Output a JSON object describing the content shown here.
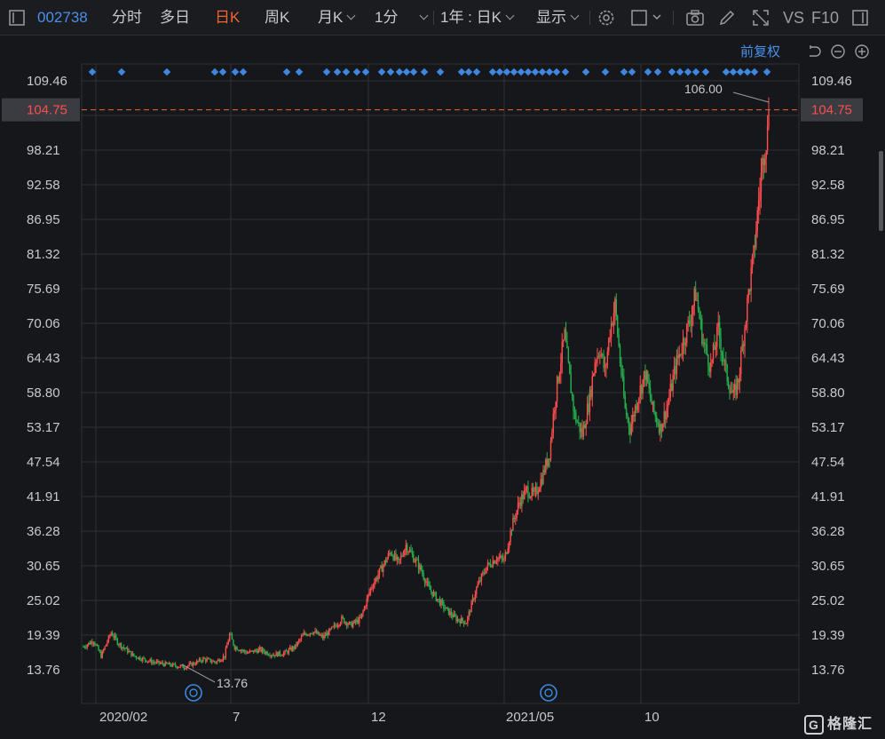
{
  "toolbar": {
    "code": "002738",
    "tabs": [
      "分时",
      "多日",
      "日K",
      "周K",
      "月K",
      "1分"
    ],
    "active_tab": "日K",
    "range": "1年 : 日K",
    "display": "显示",
    "vs": "VS",
    "f10": "F10"
  },
  "adjust_label": "前复权",
  "colors": {
    "up": "#ff4d4d",
    "down": "#23b14d",
    "grid": "#2e3036",
    "marker": "#3f86e0",
    "current": "#f4632d"
  },
  "chart_data": {
    "type": "candlestick",
    "y_ticks": [
      "109.46",
      "104.75",
      "98.21",
      "92.58",
      "86.95",
      "81.32",
      "75.69",
      "70.06",
      "64.43",
      "58.80",
      "53.17",
      "47.54",
      "41.91",
      "36.28",
      "30.65",
      "25.02",
      "19.39",
      "13.76"
    ],
    "ylim": [
      13.76,
      109.46
    ],
    "x_labels": [
      "2020/02",
      "7",
      "12",
      "2021/05",
      "10"
    ],
    "current_price": "104.75",
    "max_label": "106.00",
    "min_label": "13.76",
    "price_path": [
      [
        0,
        17.5
      ],
      [
        8,
        18.5
      ],
      [
        14,
        16.0
      ],
      [
        22,
        19.8
      ],
      [
        28,
        18.0
      ],
      [
        40,
        16.0
      ],
      [
        55,
        15.0
      ],
      [
        70,
        14.5
      ],
      [
        80,
        14.2
      ],
      [
        88,
        14.8
      ],
      [
        95,
        15.5
      ],
      [
        105,
        15.0
      ],
      [
        112,
        16.0
      ],
      [
        116,
        19.5
      ],
      [
        120,
        17.5
      ],
      [
        130,
        16.5
      ],
      [
        140,
        17.0
      ],
      [
        150,
        16.2
      ],
      [
        160,
        16.5
      ],
      [
        168,
        17.5
      ],
      [
        175,
        19.5
      ],
      [
        182,
        20.0
      ],
      [
        190,
        19.0
      ],
      [
        198,
        20.5
      ],
      [
        205,
        22.0
      ],
      [
        212,
        21.0
      ],
      [
        220,
        22.0
      ],
      [
        228,
        27.0
      ],
      [
        236,
        30.0
      ],
      [
        244,
        33.0
      ],
      [
        250,
        31.0
      ],
      [
        256,
        34.0
      ],
      [
        262,
        32.0
      ],
      [
        268,
        30.0
      ],
      [
        274,
        27.0
      ],
      [
        280,
        25.5
      ],
      [
        288,
        23.5
      ],
      [
        296,
        22.0
      ],
      [
        304,
        21.5
      ],
      [
        312,
        27.0
      ],
      [
        320,
        30.5
      ],
      [
        328,
        32.0
      ],
      [
        334,
        31.5
      ],
      [
        340,
        37.0
      ],
      [
        346,
        41.0
      ],
      [
        352,
        43.0
      ],
      [
        358,
        42.0
      ],
      [
        364,
        45.0
      ],
      [
        370,
        49.0
      ],
      [
        374,
        57.0
      ],
      [
        378,
        63.0
      ],
      [
        382,
        68.0
      ],
      [
        386,
        61.0
      ],
      [
        390,
        55.0
      ],
      [
        396,
        52.0
      ],
      [
        402,
        58.0
      ],
      [
        406,
        64.0
      ],
      [
        410,
        66.0
      ],
      [
        414,
        62.0
      ],
      [
        418,
        69.0
      ],
      [
        422,
        73.0
      ],
      [
        426,
        64.0
      ],
      [
        430,
        56.0
      ],
      [
        434,
        53.0
      ],
      [
        440,
        58.0
      ],
      [
        446,
        62.0
      ],
      [
        452,
        56.0
      ],
      [
        458,
        53.0
      ],
      [
        464,
        57.0
      ],
      [
        470,
        63.0
      ],
      [
        476,
        67.0
      ],
      [
        482,
        71.0
      ],
      [
        486,
        75.0
      ],
      [
        492,
        67.0
      ],
      [
        498,
        63.0
      ],
      [
        504,
        69.0
      ],
      [
        510,
        62.0
      ],
      [
        516,
        58.0
      ],
      [
        520,
        61.0
      ],
      [
        524,
        68.0
      ],
      [
        528,
        75.0
      ],
      [
        532,
        81.0
      ],
      [
        536,
        90.0
      ],
      [
        540,
        98.0
      ],
      [
        544,
        102.0
      ]
    ],
    "x_max": 544,
    "marker_count": 62
  }
}
